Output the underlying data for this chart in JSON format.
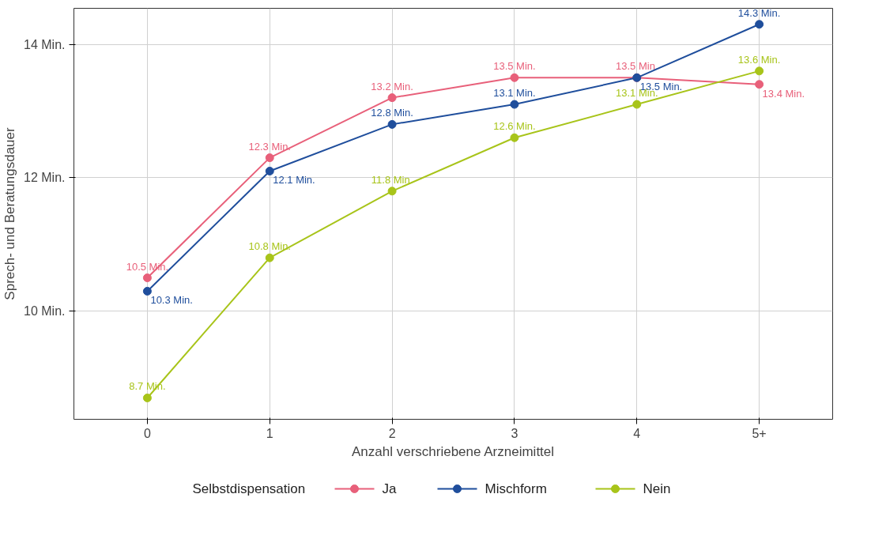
{
  "chart_data": {
    "type": "line",
    "xlabel": "Anzahl verschriebene Arzneimittel",
    "ylabel": "Sprech- und Beratungsdauer",
    "legend_title": "Selbstdispensation",
    "categories": [
      "0",
      "1",
      "2",
      "3",
      "4",
      "5+"
    ],
    "ylim": [
      8.38,
      14.54
    ],
    "yticks": [
      {
        "value": 10,
        "label": "10 Min."
      },
      {
        "value": 12,
        "label": "12 Min."
      },
      {
        "value": 14,
        "label": "14 Min."
      }
    ],
    "grid": true,
    "legend": "bottom",
    "marker": "circle",
    "line_style": "solid",
    "series": [
      {
        "name": "Ja",
        "color": "#e8607a",
        "values": [
          10.5,
          12.3,
          13.2,
          13.5,
          13.5,
          13.4
        ],
        "value_labels": [
          "10.5 Min.",
          "12.3 Min.",
          "13.2 Min.",
          "13.5 Min.",
          "13.5 Min.",
          "13.4 Min."
        ]
      },
      {
        "name": "Mischform",
        "color": "#1f4e9c",
        "values": [
          10.3,
          12.1,
          12.8,
          13.1,
          13.5,
          14.3
        ],
        "value_labels": [
          "10.3 Min.",
          "12.1 Min.",
          "12.8 Min.",
          "13.1 Min.",
          "13.5 Min.",
          "14.3 Min."
        ]
      },
      {
        "name": "Nein",
        "color": "#a8c41a",
        "values": [
          8.7,
          10.8,
          11.8,
          12.6,
          13.1,
          13.6
        ],
        "value_labels": [
          "8.7 Min.",
          "10.8 Min.",
          "11.8 Min.",
          "12.6 Min.",
          "13.1 Min.",
          "13.6 Min."
        ]
      }
    ]
  }
}
